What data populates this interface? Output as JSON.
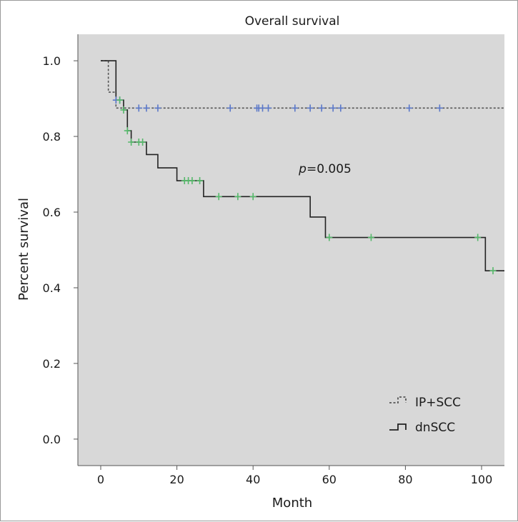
{
  "chart_data": {
    "type": "kaplan-meier",
    "title": "Overall survival",
    "xlabel": "Month",
    "ylabel": "Percent survival",
    "xlim": [
      -6,
      106
    ],
    "ylim": [
      -0.07,
      1.07
    ],
    "xticks": [
      0,
      20,
      40,
      60,
      80,
      100
    ],
    "yticks": [
      0.0,
      0.2,
      0.4,
      0.6,
      0.8,
      1.0
    ],
    "ytick_labels": [
      "0.0",
      "0.2",
      "0.4",
      "0.6",
      "0.8",
      "1.0"
    ],
    "annotation": {
      "p_label": "p",
      "p_value": "=0.005",
      "x": 52,
      "y": 0.715
    },
    "legend": {
      "position": "bottom-right",
      "entries": [
        {
          "label": "IP+SCC",
          "style": "dashed"
        },
        {
          "label": "dnSCC",
          "style": "solid"
        }
      ]
    },
    "series": [
      {
        "name": "IP+SCC",
        "line_style": "dashed",
        "line_color": "#555555",
        "censor_color": "#5b78c8",
        "steps": [
          [
            0,
            1.0
          ],
          [
            2,
            0.917
          ],
          [
            4,
            0.875
          ],
          [
            106,
            0.875
          ]
        ],
        "censored": [
          [
            4,
            0.896
          ],
          [
            5,
            0.896
          ],
          [
            10,
            0.875
          ],
          [
            12,
            0.875
          ],
          [
            15,
            0.875
          ],
          [
            34,
            0.875
          ],
          [
            41,
            0.875
          ],
          [
            41.5,
            0.875
          ],
          [
            42.5,
            0.875
          ],
          [
            44,
            0.875
          ],
          [
            51,
            0.875
          ],
          [
            55,
            0.875
          ],
          [
            58,
            0.875
          ],
          [
            61,
            0.875
          ],
          [
            63,
            0.875
          ],
          [
            81,
            0.875
          ],
          [
            89,
            0.875
          ]
        ]
      },
      {
        "name": "dnSCC",
        "line_style": "solid",
        "line_color": "#222222",
        "censor_color": "#55b86a",
        "steps": [
          [
            0,
            1.0
          ],
          [
            4,
            0.896
          ],
          [
            6,
            0.87
          ],
          [
            7,
            0.815
          ],
          [
            8,
            0.785
          ],
          [
            12,
            0.752
          ],
          [
            15,
            0.717
          ],
          [
            20,
            0.683
          ],
          [
            27,
            0.641
          ],
          [
            55,
            0.587
          ],
          [
            59,
            0.533
          ],
          [
            101,
            0.445
          ],
          [
            106,
            0.445
          ]
        ],
        "censored": [
          [
            5,
            0.896
          ],
          [
            6,
            0.87
          ],
          [
            7,
            0.815
          ],
          [
            8,
            0.785
          ],
          [
            10,
            0.785
          ],
          [
            11,
            0.785
          ],
          [
            22,
            0.683
          ],
          [
            23,
            0.683
          ],
          [
            24,
            0.683
          ],
          [
            26,
            0.683
          ],
          [
            31,
            0.641
          ],
          [
            36,
            0.641
          ],
          [
            40,
            0.641
          ],
          [
            60,
            0.533
          ],
          [
            71,
            0.533
          ],
          [
            99,
            0.533
          ],
          [
            103,
            0.445
          ]
        ]
      }
    ]
  }
}
